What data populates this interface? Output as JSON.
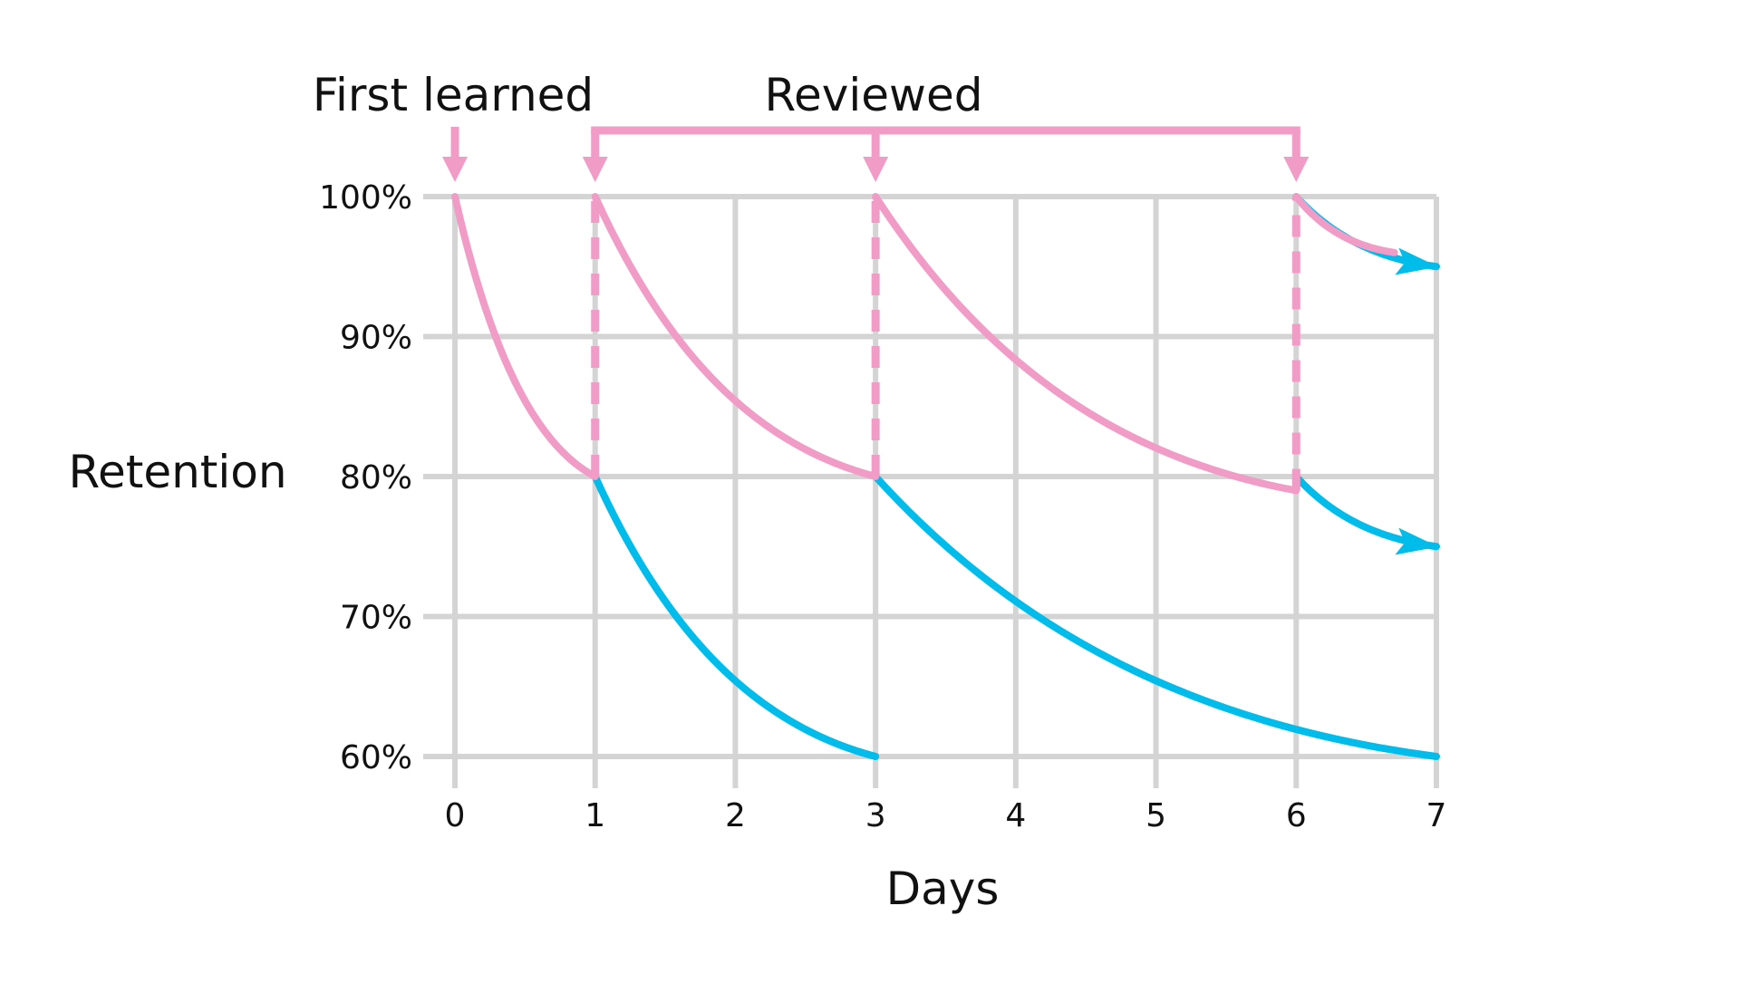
{
  "chart_data": {
    "type": "line",
    "xlabel": "Days",
    "ylabel": "Retention",
    "xlim": [
      0,
      7
    ],
    "ylim": [
      60,
      100
    ],
    "x_ticks": [
      "0",
      "1",
      "2",
      "3",
      "4",
      "5",
      "6",
      "7"
    ],
    "y_ticks": [
      "60%",
      "70%",
      "80%",
      "90%",
      "100%"
    ],
    "grid": true,
    "annotations": [
      "First learned",
      "Reviewed"
    ],
    "colors": {
      "forgetting": "#00BCEB",
      "reviewed": "#F09CC6",
      "grid": "#D4D4D4"
    },
    "forgetting_curves": [
      {
        "x_start": 1,
        "y_start": 80,
        "x_end": 3,
        "y_end": 60
      },
      {
        "x_start": 3,
        "y_start": 80,
        "x_end": 7,
        "y_end": 60
      },
      {
        "x_start": 6,
        "y_start": 80,
        "x_end": 7,
        "y_end": 75
      },
      {
        "x_start": 6,
        "y_start": 100,
        "x_end": 7,
        "y_end": 95
      }
    ],
    "reviewed_curve": [
      {
        "x_start": 0,
        "y_start": 100,
        "x_end": 1,
        "y_end": 80
      },
      {
        "x_start": 1,
        "y_start": 100,
        "x_end": 3,
        "y_end": 80
      },
      {
        "x_start": 3,
        "y_start": 100,
        "x_end": 6,
        "y_end": 79
      },
      {
        "x_start": 6,
        "y_start": 100,
        "x_end": 6.7,
        "y_end": 96
      }
    ],
    "first_learned_day": 0,
    "review_days": [
      1,
      3,
      6
    ]
  }
}
